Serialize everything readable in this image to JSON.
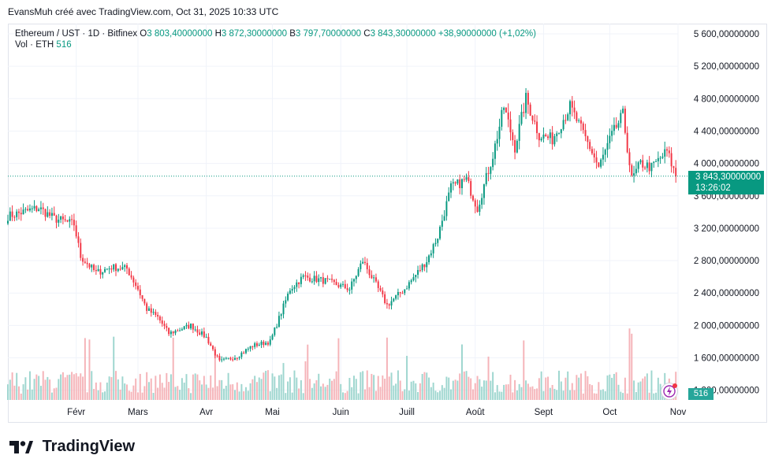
{
  "attribution": "EvansMuh créé avec TradingView.com, Oct 31, 2025 10:33 UTC",
  "legend": {
    "symbol": "Ethereum / UST · 1D · Bitfinex",
    "o_label": "O",
    "o_value": "3 803,40000000",
    "h_label": "H",
    "h_value": "3 872,30000000",
    "b_label": "B",
    "b_value": "3 797,70000000",
    "c_label": "C",
    "c_value": "3 843,30000000",
    "change": "+38,90000000 (+1,02%)",
    "vol_label": "Vol · ETH",
    "vol_value": "516"
  },
  "price_tag": {
    "price": "3 843,30000000",
    "countdown": "13:26:02"
  },
  "volume_tag": "516",
  "logo_text": "TradingView",
  "colors": {
    "up": "#089981",
    "down": "#f23645",
    "vol_up": "#9ed6cf",
    "vol_down": "#f5b3b8",
    "grid": "#f0f3fa"
  },
  "icons": [
    "tradingview-logo-icon",
    "lightning-icon"
  ],
  "chart_data": {
    "type": "candlestick",
    "y_axis_labels": [
      "5 600,00000000",
      "5 200,00000000",
      "4 800,00000000",
      "4 400,00000000",
      "4 000,00000000",
      "3 600,00000000",
      "3 200,00000000",
      "2 800,00000000",
      "2 400,00000000",
      "2 000,00000000",
      "1 600,00000000",
      "1 200,00000000"
    ],
    "y_axis_values": [
      5600,
      5200,
      4800,
      4400,
      4000,
      3600,
      3200,
      2800,
      2400,
      2000,
      1600,
      1200
    ],
    "x_axis_labels": [
      "Févr",
      "Mars",
      "Avr",
      "Mai",
      "Juin",
      "Juill",
      "Août",
      "Sept",
      "Oct",
      "Nov"
    ],
    "x_axis_dates": [
      "2025-02-01",
      "2025-03-01",
      "2025-04-01",
      "2025-05-01",
      "2025-06-01",
      "2025-07-01",
      "2025-08-01",
      "2025-09-01",
      "2025-10-01",
      "2025-11-01"
    ],
    "ylim": [
      1100,
      5700
    ],
    "x_range": [
      "2025-01-01",
      "2025-11-01"
    ],
    "last_price": 3843.3,
    "closes_approx": [
      [
        "2025-01-01",
        3350
      ],
      [
        "2025-01-08",
        3400
      ],
      [
        "2025-01-15",
        3450
      ],
      [
        "2025-01-22",
        3320
      ],
      [
        "2025-01-31",
        3250
      ],
      [
        "2025-02-03",
        2850
      ],
      [
        "2025-02-10",
        2650
      ],
      [
        "2025-02-17",
        2720
      ],
      [
        "2025-02-24",
        2700
      ],
      [
        "2025-03-01",
        2450
      ],
      [
        "2025-03-05",
        2200
      ],
      [
        "2025-03-10",
        2100
      ],
      [
        "2025-03-15",
        1900
      ],
      [
        "2025-03-25",
        2000
      ],
      [
        "2025-04-01",
        1850
      ],
      [
        "2025-04-07",
        1550
      ],
      [
        "2025-04-15",
        1620
      ],
      [
        "2025-04-22",
        1750
      ],
      [
        "2025-04-30",
        1800
      ],
      [
        "2025-05-09",
        2450
      ],
      [
        "2025-05-15",
        2600
      ],
      [
        "2025-05-25",
        2550
      ],
      [
        "2025-06-05",
        2450
      ],
      [
        "2025-06-11",
        2800
      ],
      [
        "2025-06-22",
        2250
      ],
      [
        "2025-06-30",
        2450
      ],
      [
        "2025-07-10",
        2800
      ],
      [
        "2025-07-15",
        3100
      ],
      [
        "2025-07-21",
        3700
      ],
      [
        "2025-07-28",
        3800
      ],
      [
        "2025-08-02",
        3450
      ],
      [
        "2025-08-09",
        4100
      ],
      [
        "2025-08-14",
        4700
      ],
      [
        "2025-08-19",
        4200
      ],
      [
        "2025-08-24",
        4800
      ],
      [
        "2025-08-30",
        4350
      ],
      [
        "2025-09-05",
        4300
      ],
      [
        "2025-09-13",
        4700
      ],
      [
        "2025-09-22",
        4200
      ],
      [
        "2025-09-26",
        3950
      ],
      [
        "2025-10-02",
        4350
      ],
      [
        "2025-10-07",
        4600
      ],
      [
        "2025-10-11",
        3800
      ],
      [
        "2025-10-15",
        4000
      ],
      [
        "2025-10-20",
        3950
      ],
      [
        "2025-10-27",
        4150
      ],
      [
        "2025-10-31",
        3843
      ]
    ],
    "volume": {
      "last": 516
    }
  }
}
